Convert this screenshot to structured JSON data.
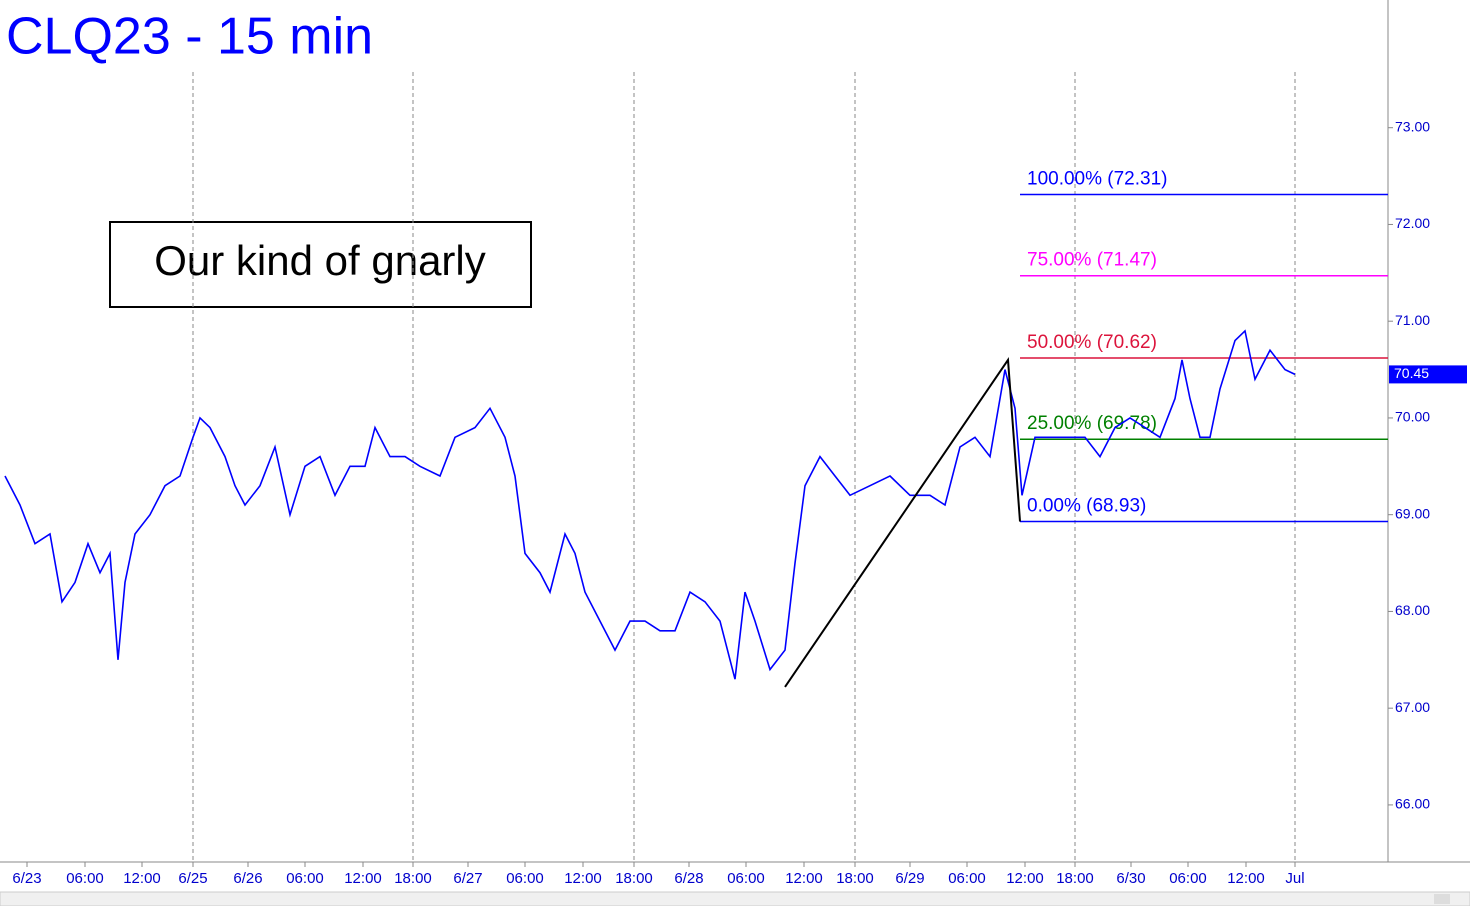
{
  "chart_data": {
    "type": "line",
    "title": "CLQ23 - 15 min",
    "annotation": "Our kind of gnarly",
    "x": [
      2.5,
      10,
      17.5,
      25,
      31,
      37.5,
      44,
      50,
      55,
      59,
      62.5,
      67.5,
      75,
      82.5,
      90,
      96.5,
      100,
      105,
      112.5,
      117.5,
      122.5,
      130,
      137.5,
      145,
      152.5,
      160,
      167.5,
      175,
      182.5,
      187.5,
      195,
      202.5,
      210,
      220,
      227.5,
      237.5,
      245,
      252.5,
      257.5,
      262.5,
      270,
      275,
      282.5,
      287.5,
      292.5,
      300,
      307.5,
      315,
      322.5,
      330,
      337.5,
      345,
      352.5,
      360,
      367.5,
      372.5,
      377.5,
      385,
      392.5,
      397.5,
      402.5,
      410,
      417.5,
      425,
      435,
      445,
      455,
      465,
      472.5,
      480,
      487.5,
      495,
      502.5,
      507.5,
      511,
      517.5,
      525,
      535,
      542.5,
      550,
      557.5,
      565,
      572.5,
      580,
      587.5,
      591,
      595,
      600,
      605,
      610,
      617.5,
      622.5,
      627.5,
      635,
      642.5,
      647.5
    ],
    "series": [
      {
        "name": "CLQ23",
        "color": "#0000ff",
        "values": [
          69.4,
          69.1,
          68.7,
          68.8,
          68.1,
          68.3,
          68.7,
          68.4,
          68.6,
          67.5,
          68.3,
          68.8,
          69.0,
          69.3,
          69.4,
          69.8,
          70.0,
          69.9,
          69.6,
          69.3,
          69.1,
          69.3,
          69.7,
          69.0,
          69.5,
          69.6,
          69.2,
          69.5,
          69.5,
          69.9,
          69.6,
          69.6,
          69.5,
          69.4,
          69.8,
          69.9,
          70.1,
          69.8,
          69.4,
          68.6,
          68.4,
          68.2,
          68.8,
          68.6,
          68.2,
          67.9,
          67.6,
          67.9,
          67.9,
          67.8,
          67.8,
          68.2,
          68.1,
          67.9,
          67.3,
          68.2,
          67.9,
          67.4,
          67.6,
          68.5,
          69.3,
          69.6,
          69.4,
          69.2,
          69.3,
          69.4,
          69.2,
          69.2,
          69.1,
          69.7,
          69.8,
          69.6,
          70.5,
          70.1,
          69.2,
          69.8,
          69.8,
          69.8,
          69.8,
          69.6,
          69.9,
          70.0,
          69.9,
          69.8,
          70.2,
          70.6,
          70.2,
          69.8,
          69.8,
          70.3,
          70.8,
          70.9,
          70.4,
          70.7,
          70.5,
          70.45
        ]
      }
    ],
    "pattern_line": {
      "color": "#000000",
      "x": [
        392.5,
        504,
        510
      ],
      "values": [
        67.22,
        70.6,
        68.93
      ]
    },
    "fib_levels": [
      {
        "label": "100.00% (72.31)",
        "value": 72.31,
        "color": "#0000ff"
      },
      {
        "label": "75.00% (71.47)",
        "value": 71.47,
        "color": "#ff00ff"
      },
      {
        "label": "50.00% (70.62)",
        "value": 70.62,
        "color": "#dc143c"
      },
      {
        "label": "25.00% (69.78)",
        "value": 69.78,
        "color": "#008000"
      },
      {
        "label": "0.00% (68.93)",
        "value": 68.93,
        "color": "#0000ff"
      }
    ],
    "fib_start": 510,
    "last_price": {
      "value": 70.45,
      "label": "70.45"
    },
    "xlim": [
      0,
      694
    ],
    "ylim": [
      65.41,
      74.32
    ],
    "xticks": [
      {
        "value": 13.5,
        "label": "6/23"
      },
      {
        "value": 42.5,
        "label": "06:00"
      },
      {
        "value": 71,
        "label": "12:00"
      },
      {
        "value": 96.5,
        "label": "6/25"
      },
      {
        "value": 124,
        "label": "6/26"
      },
      {
        "value": 152.5,
        "label": "06:00"
      },
      {
        "value": 181.5,
        "label": "12:00"
      },
      {
        "value": 206.5,
        "label": "18:00"
      },
      {
        "value": 234,
        "label": "6/27"
      },
      {
        "value": 262.5,
        "label": "06:00"
      },
      {
        "value": 291.5,
        "label": "12:00"
      },
      {
        "value": 317,
        "label": "18:00"
      },
      {
        "value": 344.5,
        "label": "6/28"
      },
      {
        "value": 373,
        "label": "06:00"
      },
      {
        "value": 402,
        "label": "12:00"
      },
      {
        "value": 427.5,
        "label": "18:00"
      },
      {
        "value": 455,
        "label": "6/29"
      },
      {
        "value": 483.5,
        "label": "06:00"
      },
      {
        "value": 512.5,
        "label": "12:00"
      },
      {
        "value": 537.5,
        "label": "18:00"
      },
      {
        "value": 565.5,
        "label": "6/30"
      },
      {
        "value": 594,
        "label": "06:00"
      },
      {
        "value": 623,
        "label": "12:00"
      },
      {
        "value": 647.5,
        "label": "Jul"
      }
    ],
    "yticks": [
      {
        "value": 73,
        "label": "73.00"
      },
      {
        "value": 72,
        "label": "72.00"
      },
      {
        "value": 71,
        "label": "71.00"
      },
      {
        "value": 70,
        "label": "70.00"
      },
      {
        "value": 69,
        "label": "69.00"
      },
      {
        "value": 68,
        "label": "68.00"
      },
      {
        "value": 67,
        "label": "67.00"
      },
      {
        "value": 66,
        "label": "66.00"
      }
    ]
  }
}
